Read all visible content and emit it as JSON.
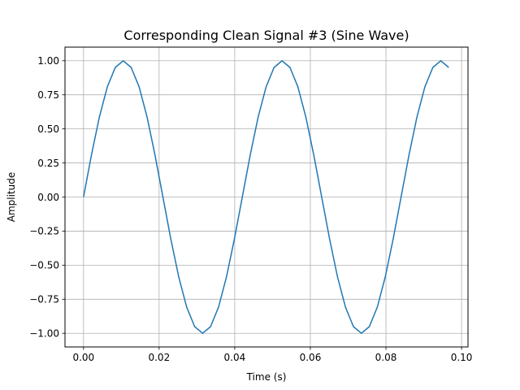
{
  "chart_data": {
    "type": "line",
    "title": "Corresponding Clean Signal #3 (Sine Wave)",
    "xlabel": "Time (s)",
    "ylabel": "Amplitude",
    "xlim": [
      -0.0049,
      0.1017
    ],
    "ylim": [
      -1.1,
      1.1
    ],
    "grid": true,
    "xticks": [
      0.0,
      0.02,
      0.04,
      0.06,
      0.08,
      0.1
    ],
    "xtick_labels": [
      "0.00",
      "0.02",
      "0.04",
      "0.06",
      "0.08",
      "0.10"
    ],
    "yticks": [
      -1.0,
      -0.75,
      -0.5,
      -0.25,
      0.0,
      0.25,
      0.5,
      0.75,
      1.0
    ],
    "ytick_labels": [
      "−1.00",
      "−0.75",
      "−0.50",
      "−0.25",
      "0.00",
      "0.25",
      "0.50",
      "0.75",
      "1.00"
    ],
    "series": [
      {
        "color": "#1f77b4",
        "x": [
          0.0,
          0.0021,
          0.0042,
          0.0063,
          0.0084,
          0.0105,
          0.0126,
          0.0147,
          0.0168,
          0.0189,
          0.021,
          0.0231,
          0.0252,
          0.0273,
          0.0294,
          0.0315,
          0.0336,
          0.0357,
          0.0378,
          0.0399,
          0.042,
          0.0441,
          0.0462,
          0.0483,
          0.0504,
          0.0525,
          0.0546,
          0.0567,
          0.0588,
          0.0609,
          0.063,
          0.0651,
          0.0672,
          0.0693,
          0.0714,
          0.0735,
          0.0756,
          0.0777,
          0.0798,
          0.0819,
          0.084,
          0.0861,
          0.0882,
          0.0903,
          0.0924,
          0.0945,
          0.0966
        ],
        "y": [
          0.0,
          0.309,
          0.588,
          0.809,
          0.951,
          1.0,
          0.951,
          0.809,
          0.588,
          0.309,
          0.0,
          -0.309,
          -0.588,
          -0.809,
          -0.951,
          -1.0,
          -0.951,
          -0.809,
          -0.588,
          -0.309,
          0.0,
          0.309,
          0.588,
          0.809,
          0.951,
          1.0,
          0.951,
          0.809,
          0.588,
          0.309,
          0.0,
          -0.309,
          -0.588,
          -0.809,
          -0.951,
          -1.0,
          -0.951,
          -0.809,
          -0.588,
          -0.309,
          0.0,
          0.309,
          0.588,
          0.809,
          0.951,
          1.0,
          0.951
        ]
      }
    ]
  }
}
